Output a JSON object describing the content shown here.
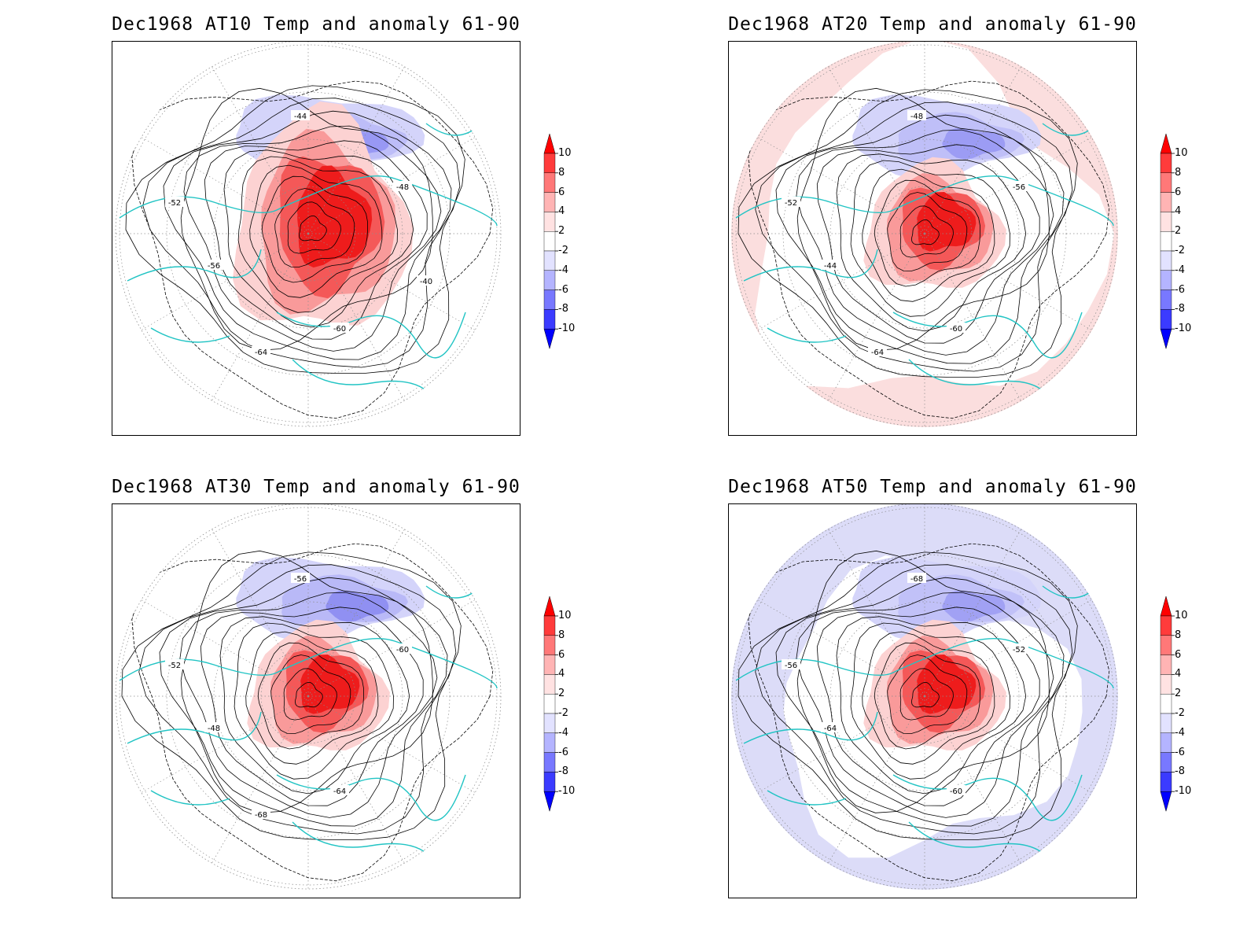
{
  "panels": [
    {
      "title": "Dec1968 AT10 Temp and anomaly 61-90",
      "contour_labels": [
        "-44",
        "-48",
        "-52",
        "-56",
        "-60",
        "-64",
        "-40"
      ],
      "shade": {
        "warm": 1.0,
        "cold": 0.55,
        "background": "none"
      }
    },
    {
      "title": "Dec1968 AT20 Temp and anomaly 61-90",
      "contour_labels": [
        "-48",
        "-56",
        "-52",
        "-44",
        "-60",
        "-64"
      ],
      "shade": {
        "warm": 1.0,
        "cold": 0.5,
        "background": "warm-ring"
      }
    },
    {
      "title": "Dec1968 AT30 Temp and anomaly 61-90",
      "contour_labels": [
        "-56",
        "-60",
        "-52",
        "-48",
        "-64",
        "-68"
      ],
      "shade": {
        "warm": 1.0,
        "cold": 0.65,
        "background": "none"
      }
    },
    {
      "title": "Dec1968 AT50 Temp and anomaly 61-90",
      "contour_labels": [
        "-68",
        "-52",
        "-56",
        "-64",
        "-60"
      ],
      "shade": {
        "warm": 1.0,
        "cold": 0.45,
        "background": "cold-disk"
      }
    }
  ],
  "colorbar": {
    "ticks": [
      "10",
      "8",
      "6",
      "4",
      "2",
      "-2",
      "-4",
      "-6",
      "-8",
      "-10"
    ],
    "colors": [
      "#ff0000",
      "#ff3b3b",
      "#ff7878",
      "#ffb4b4",
      "#ffe2e2",
      "#ffffff",
      "#e2e2ff",
      "#b4b4ff",
      "#7878ff",
      "#3b3bff",
      "#0000ff"
    ]
  },
  "colors": {
    "coast": "#22c4c4",
    "contour": "#000000",
    "grid": "#8c8c8c"
  }
}
